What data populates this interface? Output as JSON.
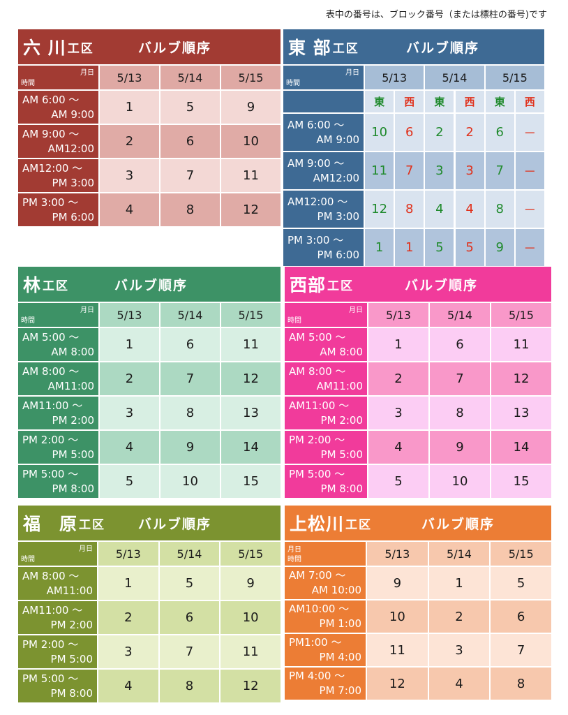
{
  "note": "表中の番号は、ブロック番号（または標柱の番号)です",
  "labels": {
    "kou": "工区",
    "valve": "バルブ順序",
    "corner_a": "月日",
    "corner_b": "時間",
    "east": "東",
    "west": "西"
  },
  "colors": {
    "rokkawa": {
      "dark": "#a23b33",
      "hdr": "#dfa9a4",
      "light": "#f3d8d5",
      "mid": "#e0aba6"
    },
    "tobu": {
      "dark": "#3e6a94",
      "hdr": "#a6bdd6",
      "light": "#d9e3ef",
      "mid": "#b0c4dc"
    },
    "hayashi": {
      "dark": "#3d9266",
      "hdr": "#acd9c2",
      "light": "#d8efe3",
      "mid": "#acd9c2"
    },
    "seibu": {
      "dark": "#f13b9b",
      "hdr": "#f998c9",
      "light": "#fccdf4",
      "mid": "#f998c9"
    },
    "fukuhara": {
      "dark": "#7c9330",
      "hdr": "#d3e0a4",
      "light": "#e9f0cc",
      "mid": "#d3e0a4"
    },
    "kamimatsukawa": {
      "dark": "#ec7d35",
      "hdr": "#f7c8ad",
      "light": "#fde4d6",
      "mid": "#f7c8ad"
    }
  },
  "sections": {
    "rokkawa": {
      "name": "六 川",
      "dates": [
        "5/13",
        "5/14",
        "5/15"
      ],
      "rows": [
        {
          "t1": "AM 6:00 〜",
          "t2": "AM 9:00",
          "v": [
            "1",
            "5",
            "9"
          ]
        },
        {
          "t1": "AM 9:00 〜",
          "t2": "AM12:00",
          "v": [
            "2",
            "6",
            "10"
          ]
        },
        {
          "t1": "AM12:00 〜",
          "t2": "PM 3:00",
          "v": [
            "3",
            "7",
            "11"
          ]
        },
        {
          "t1": "PM 3:00 〜",
          "t2": "PM 6:00",
          "v": [
            "4",
            "8",
            "12"
          ]
        }
      ]
    },
    "tobu": {
      "name": "東 部",
      "dates": [
        "5/13",
        "5/14",
        "5/15"
      ],
      "rows": [
        {
          "t1": "AM 6:00 〜",
          "t2": "AM 9:00",
          "v": [
            "10",
            "6",
            "2",
            "2",
            "6",
            "－"
          ]
        },
        {
          "t1": "AM 9:00 〜",
          "t2": "AM12:00",
          "v": [
            "11",
            "7",
            "3",
            "3",
            "7",
            "－"
          ]
        },
        {
          "t1": "AM12:00 〜",
          "t2": "PM 3:00",
          "v": [
            "12",
            "8",
            "4",
            "4",
            "8",
            "－"
          ]
        },
        {
          "t1": "PM 3:00 〜",
          "t2": "PM 6:00",
          "v": [
            "1",
            "1",
            "5",
            "5",
            "9",
            "－"
          ]
        }
      ]
    },
    "hayashi": {
      "name": "林",
      "dates": [
        "5/13",
        "5/14",
        "5/15"
      ],
      "rows": [
        {
          "t1": "AM 5:00 〜",
          "t2": "AM 8:00",
          "v": [
            "1",
            "6",
            "11"
          ]
        },
        {
          "t1": "AM 8:00 〜",
          "t2": "AM11:00",
          "v": [
            "2",
            "7",
            "12"
          ]
        },
        {
          "t1": "AM11:00 〜",
          "t2": "PM 2:00",
          "v": [
            "3",
            "8",
            "13"
          ]
        },
        {
          "t1": "PM 2:00 〜",
          "t2": "PM 5:00",
          "v": [
            "4",
            "9",
            "14"
          ]
        },
        {
          "t1": "PM 5:00 〜",
          "t2": "PM 8:00",
          "v": [
            "5",
            "10",
            "15"
          ]
        }
      ]
    },
    "seibu": {
      "name": "西部",
      "dates": [
        "5/13",
        "5/14",
        "5/15"
      ],
      "rows": [
        {
          "t1": "AM 5:00 〜",
          "t2": "AM 8:00",
          "v": [
            "1",
            "6",
            "11"
          ]
        },
        {
          "t1": "AM 8:00 〜",
          "t2": "AM11:00",
          "v": [
            "2",
            "7",
            "12"
          ]
        },
        {
          "t1": "AM11:00 〜",
          "t2": "PM 2:00",
          "v": [
            "3",
            "8",
            "13"
          ]
        },
        {
          "t1": "PM 2:00 〜",
          "t2": "PM 5:00",
          "v": [
            "4",
            "9",
            "14"
          ]
        },
        {
          "t1": "PM 5:00 〜",
          "t2": "PM 8:00",
          "v": [
            "5",
            "10",
            "15"
          ]
        }
      ]
    },
    "fukuhara": {
      "name": "福　原",
      "dates": [
        "5/13",
        "5/14",
        "5/15"
      ],
      "rows": [
        {
          "t1": "AM 8:00 〜",
          "t2": "AM11:00",
          "v": [
            "1",
            "5",
            "9"
          ]
        },
        {
          "t1": "AM11:00 〜",
          "t2": "PM 2:00",
          "v": [
            "2",
            "6",
            "10"
          ]
        },
        {
          "t1": "PM 2:00 〜",
          "t2": "PM 5:00",
          "v": [
            "3",
            "7",
            "11"
          ]
        },
        {
          "t1": "PM 5:00 〜",
          "t2": "PM 8:00",
          "v": [
            "4",
            "8",
            "12"
          ]
        }
      ]
    },
    "kamimatsukawa": {
      "name": "上松川",
      "dates": [
        "5/13",
        "5/14",
        "5/15"
      ],
      "rows": [
        {
          "t1": "AM 7:00 〜",
          "t2": "AM 10:00",
          "v": [
            "9",
            "1",
            "5"
          ]
        },
        {
          "t1": "AM10:00 〜",
          "t2": "PM 1:00",
          "v": [
            "10",
            "2",
            "6"
          ]
        },
        {
          "t1": "PM1:00 〜",
          "t2": "PM 4:00",
          "v": [
            "11",
            "3",
            "7"
          ]
        },
        {
          "t1": "PM 4:00 〜",
          "t2": "PM 7:00",
          "v": [
            "12",
            "4",
            "8"
          ]
        }
      ]
    }
  }
}
